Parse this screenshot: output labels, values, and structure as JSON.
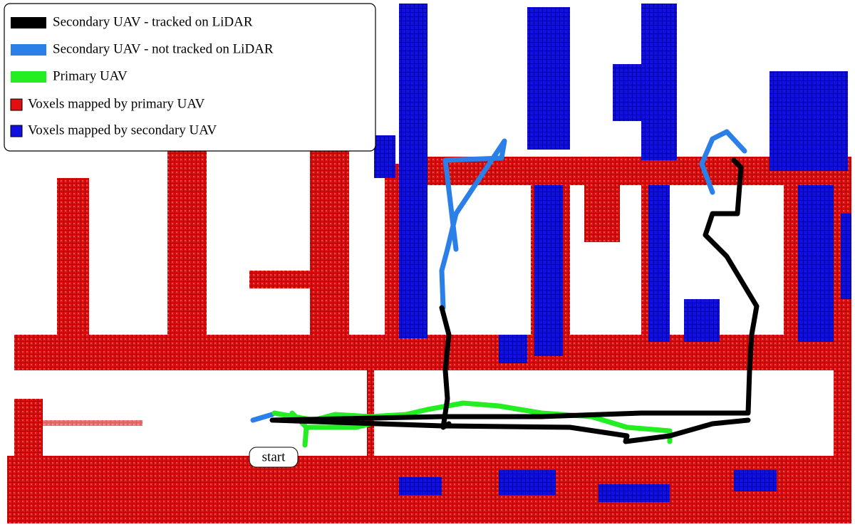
{
  "legend": {
    "items": [
      {
        "label": "Secondary UAV - tracked on LiDAR",
        "color": "#000000",
        "shape": "line"
      },
      {
        "label": "Secondary UAV - not tracked on LiDAR",
        "color": "#2a7fe8",
        "shape": "line"
      },
      {
        "label": "Primary UAV",
        "color": "#22ee22",
        "shape": "line"
      },
      {
        "label": "Voxels mapped by primary UAV",
        "color": "#e01010",
        "shape": "square"
      },
      {
        "label": "Voxels mapped by secondary UAV",
        "color": "#1010e0",
        "shape": "square"
      }
    ]
  },
  "annotations": {
    "start": "start"
  }
}
